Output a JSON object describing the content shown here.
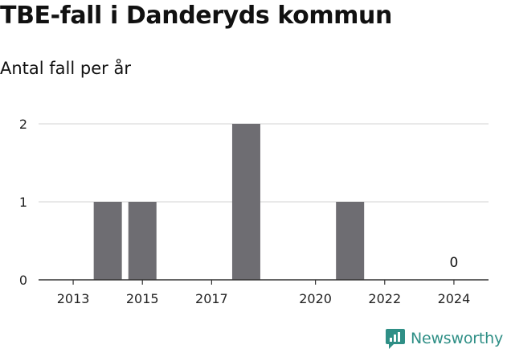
{
  "chart_data": {
    "type": "bar",
    "title": "TBE-fall i Danderyds kommun",
    "subtitle": "Antal fall per år",
    "xlabel": "",
    "ylabel": "",
    "x": [
      2014,
      2015,
      2018,
      2021,
      2024
    ],
    "values": [
      1,
      1,
      2,
      1,
      0
    ],
    "data_labels": [
      {
        "x": 2024,
        "text": "0"
      }
    ],
    "xlim": [
      2012,
      2025
    ],
    "ylim": [
      0,
      2
    ],
    "x_ticks": [
      "2013",
      "2015",
      "2017",
      "2020",
      "2022",
      "2024"
    ],
    "y_ticks": [
      "0",
      "1",
      "2"
    ],
    "grid": true,
    "bar_color": "#6e6d72"
  },
  "brand": {
    "name": "Newsworthy",
    "icon": "newsworthy-logo-icon",
    "color": "#2f8f86"
  }
}
